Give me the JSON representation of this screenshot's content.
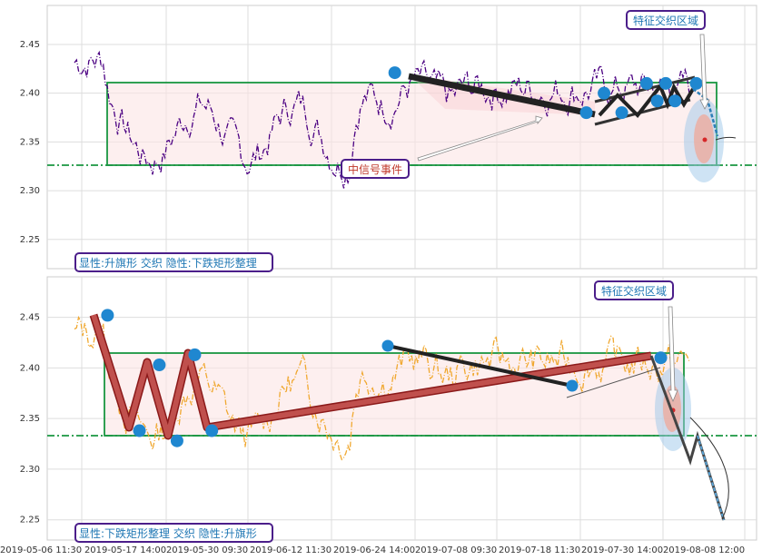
{
  "chart_data": [
    {
      "type": "line",
      "panel": "top",
      "ylim": [
        2.22,
        2.49
      ],
      "yticks": [
        "2.45",
        "2.40",
        "2.35",
        "2.30",
        "2.25"
      ],
      "series_color": "#4b0082",
      "box": {
        "x0": 0.12,
        "x1": 0.99,
        "ylo": 2.329,
        "yhi": 2.413
      },
      "support_level": 2.329,
      "annotation_event": "中信号事件",
      "annotation_zone": "特征交织区域",
      "legend_text": "显性:升旗形 交织 隐性:下跌矩形整理",
      "pattern_points": [
        [
          0.49,
          2.421
        ],
        [
          0.76,
          2.38
        ],
        [
          0.785,
          2.4
        ],
        [
          0.81,
          2.38
        ],
        [
          0.845,
          2.41
        ],
        [
          0.86,
          2.392
        ],
        [
          0.872,
          2.41
        ],
        [
          0.885,
          2.392
        ],
        [
          0.915,
          2.41
        ]
      ]
    },
    {
      "type": "line",
      "panel": "bottom",
      "ylim": [
        2.23,
        2.49
      ],
      "yticks": [
        "2.45",
        "2.40",
        "2.35",
        "2.30",
        "2.25"
      ],
      "series_color": "#f0a830",
      "box": {
        "x0": 0.12,
        "x1": 0.91,
        "ylo": 2.329,
        "yhi": 2.413
      },
      "support_level": 2.329,
      "annotation_zone": "特征交织区域",
      "legend_text": "显性:下跌矩形整理 交织 隐性:升旗形",
      "pattern_points": [
        [
          0.085,
          2.452
        ],
        [
          0.13,
          2.338
        ],
        [
          0.158,
          2.403
        ],
        [
          0.183,
          2.328
        ],
        [
          0.208,
          2.413
        ],
        [
          0.232,
          2.338
        ],
        [
          0.865,
          2.41
        ]
      ],
      "x_tick_labels": [
        "2019-05-06 11:30",
        "2019-05-17 14:00",
        "2019-05-30 09:30",
        "2019-06-12 11:30",
        "2019-06-24 14:00",
        "2019-07-08 09:30",
        "2019-07-18 11:30",
        "2019-07-30 14:00",
        "2019-08-08 12:00"
      ]
    }
  ]
}
